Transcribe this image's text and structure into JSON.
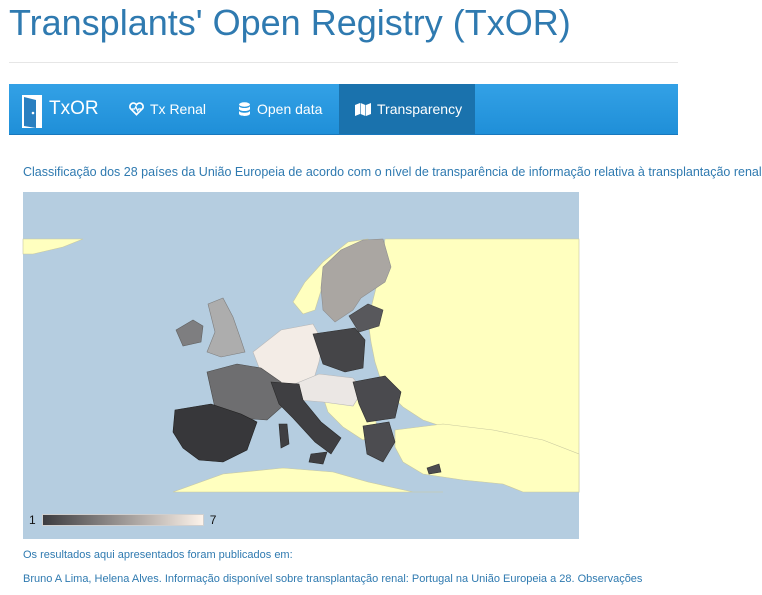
{
  "page": {
    "title": "Transplants' Open Registry (TxOR)"
  },
  "navbar": {
    "brand": "TxOR",
    "items": [
      {
        "label": "Tx Renal",
        "icon": "heart-pulse-icon",
        "active": false
      },
      {
        "label": "Open data",
        "icon": "database-icon",
        "active": false
      },
      {
        "label": "Transparency",
        "icon": "map-icon",
        "active": true
      }
    ]
  },
  "content": {
    "subtitle": "Classificação dos 28 países da União Europeia de acordo com o nível de transparência de informação relativa à transplantação renal",
    "legend": {
      "min": "1",
      "max": "7",
      "color_low": "#3c3c40",
      "color_high": "#fdf3ea"
    },
    "map": {
      "sea_color": "#b5cde0",
      "non_eu_color": "#ffffbf"
    },
    "publication_label": "Os resultados aqui apresentados foram publicados em:",
    "citation": "Bruno A Lima, Helena Alves. Informação disponível sobre transplantação renal: Portugal na União Europeia a 28. Observações"
  },
  "colors": {
    "title": "#2f7ab0",
    "nav_bg": "#2c9be2",
    "nav_active": "#1a72ad"
  }
}
